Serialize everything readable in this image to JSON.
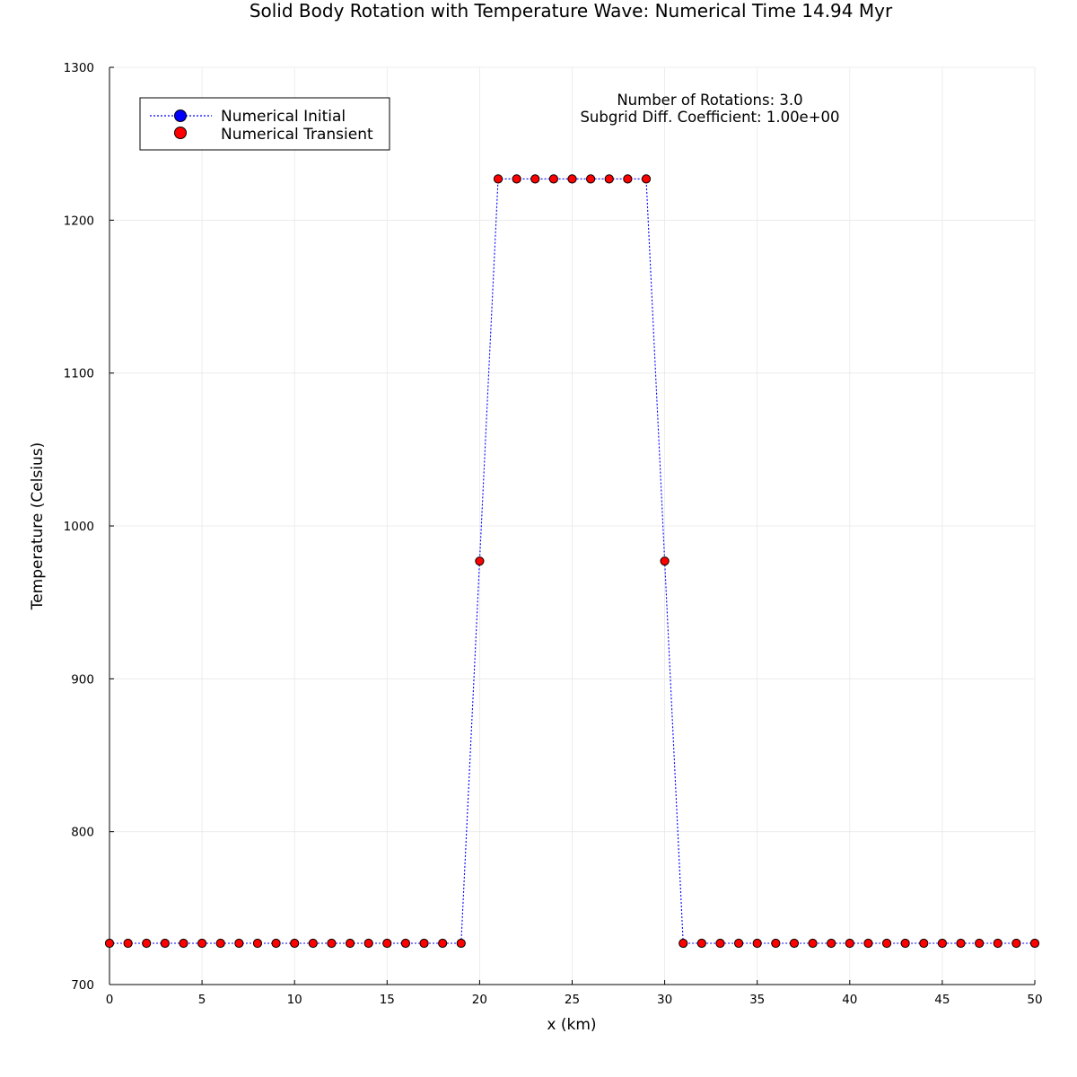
{
  "chart_data": {
    "type": "line",
    "title": "Solid Body Rotation with Temperature Wave: Numerical Time 14.94 Myr",
    "xlabel": "x (km)",
    "ylabel": "Temperature (Celsius)",
    "xlim": [
      0,
      50
    ],
    "ylim": [
      700,
      1300
    ],
    "xticks": [
      0,
      5,
      10,
      15,
      20,
      25,
      30,
      35,
      40,
      45,
      50
    ],
    "yticks": [
      700,
      800,
      900,
      1000,
      1100,
      1200,
      1300
    ],
    "grid": true,
    "legend_position": "top-left",
    "annotations": [
      "Number of Rotations: 3.0",
      "Subgrid Diff. Coefficient: 1.00e+00"
    ],
    "x": [
      0,
      1,
      2,
      3,
      4,
      5,
      6,
      7,
      8,
      9,
      10,
      11,
      12,
      13,
      14,
      15,
      16,
      17,
      18,
      19,
      20,
      21,
      22,
      23,
      24,
      25,
      26,
      27,
      28,
      29,
      30,
      31,
      32,
      33,
      34,
      35,
      36,
      37,
      38,
      39,
      40,
      41,
      42,
      43,
      44,
      45,
      46,
      47,
      48,
      49,
      50
    ],
    "series": [
      {
        "name": "Numerical Initial",
        "style": "dotted-line",
        "color": "#0000ff",
        "values": [
          727,
          727,
          727,
          727,
          727,
          727,
          727,
          727,
          727,
          727,
          727,
          727,
          727,
          727,
          727,
          727,
          727,
          727,
          727,
          727,
          977,
          1227,
          1227,
          1227,
          1227,
          1227,
          1227,
          1227,
          1227,
          1227,
          977,
          727,
          727,
          727,
          727,
          727,
          727,
          727,
          727,
          727,
          727,
          727,
          727,
          727,
          727,
          727,
          727,
          727,
          727,
          727,
          727
        ]
      },
      {
        "name": "Numerical Transient",
        "style": "markers",
        "color": "#ff0000",
        "values": [
          727,
          727,
          727,
          727,
          727,
          727,
          727,
          727,
          727,
          727,
          727,
          727,
          727,
          727,
          727,
          727,
          727,
          727,
          727,
          727,
          977,
          1227,
          1227,
          1227,
          1227,
          1227,
          1227,
          1227,
          1227,
          1227,
          977,
          727,
          727,
          727,
          727,
          727,
          727,
          727,
          727,
          727,
          727,
          727,
          727,
          727,
          727,
          727,
          727,
          727,
          727,
          727,
          727
        ]
      }
    ]
  }
}
